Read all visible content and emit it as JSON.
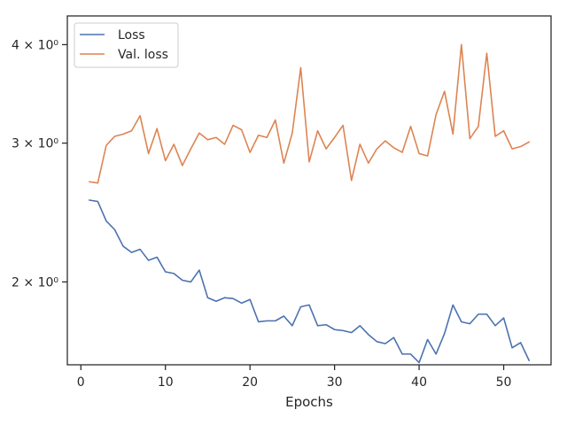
{
  "chart_data": {
    "type": "line",
    "title": "",
    "xlabel": "Epochs",
    "ylabel": "",
    "yscale": "log",
    "xlim": [
      -1.6,
      55.6
    ],
    "ylim": [
      1.57,
      4.35
    ],
    "grid": false,
    "legend_position": "top-left",
    "x_ticks": [
      0,
      10,
      20,
      30,
      40,
      50
    ],
    "x_tick_labels": [
      "0",
      "10",
      "20",
      "30",
      "40",
      "50"
    ],
    "y_ticks": [
      2,
      3,
      4
    ],
    "y_tick_labels": [
      "2 × 10⁰",
      "3 × 10⁰",
      "4 × 10⁰"
    ],
    "x": [
      1,
      2,
      3,
      4,
      5,
      6,
      7,
      8,
      9,
      10,
      11,
      12,
      13,
      14,
      15,
      16,
      17,
      18,
      19,
      20,
      21,
      22,
      23,
      24,
      25,
      26,
      27,
      28,
      29,
      30,
      31,
      32,
      33,
      34,
      35,
      36,
      37,
      38,
      39,
      40,
      41,
      42,
      43,
      44,
      45,
      46,
      47,
      48,
      49,
      50,
      51,
      52,
      53
    ],
    "series": [
      {
        "name": "Loss",
        "color": "#4c72b0",
        "values": [
          2.54,
          2.53,
          2.39,
          2.33,
          2.22,
          2.18,
          2.2,
          2.13,
          2.15,
          2.06,
          2.05,
          2.01,
          2.0,
          2.07,
          1.91,
          1.89,
          1.91,
          1.905,
          1.88,
          1.9,
          1.78,
          1.785,
          1.785,
          1.81,
          1.76,
          1.86,
          1.87,
          1.76,
          1.765,
          1.74,
          1.735,
          1.725,
          1.76,
          1.715,
          1.68,
          1.67,
          1.7,
          1.62,
          1.62,
          1.58,
          1.69,
          1.62,
          1.72,
          1.87,
          1.78,
          1.77,
          1.82,
          1.82,
          1.76,
          1.8,
          1.65,
          1.675,
          1.59
        ]
      },
      {
        "name": "Val. loss",
        "color": "#dd8452",
        "values": [
          2.68,
          2.67,
          2.98,
          3.06,
          3.08,
          3.11,
          3.25,
          2.91,
          3.13,
          2.85,
          2.99,
          2.81,
          2.95,
          3.09,
          3.03,
          3.05,
          2.99,
          3.16,
          3.12,
          2.92,
          3.07,
          3.05,
          3.21,
          2.83,
          3.09,
          3.74,
          2.84,
          3.11,
          2.95,
          3.05,
          3.16,
          2.69,
          2.99,
          2.83,
          2.95,
          3.02,
          2.96,
          2.92,
          3.15,
          2.91,
          2.89,
          3.26,
          3.49,
          3.08,
          4.0,
          3.04,
          3.15,
          3.9,
          3.06,
          3.11,
          2.95,
          2.97,
          3.01
        ]
      }
    ]
  }
}
